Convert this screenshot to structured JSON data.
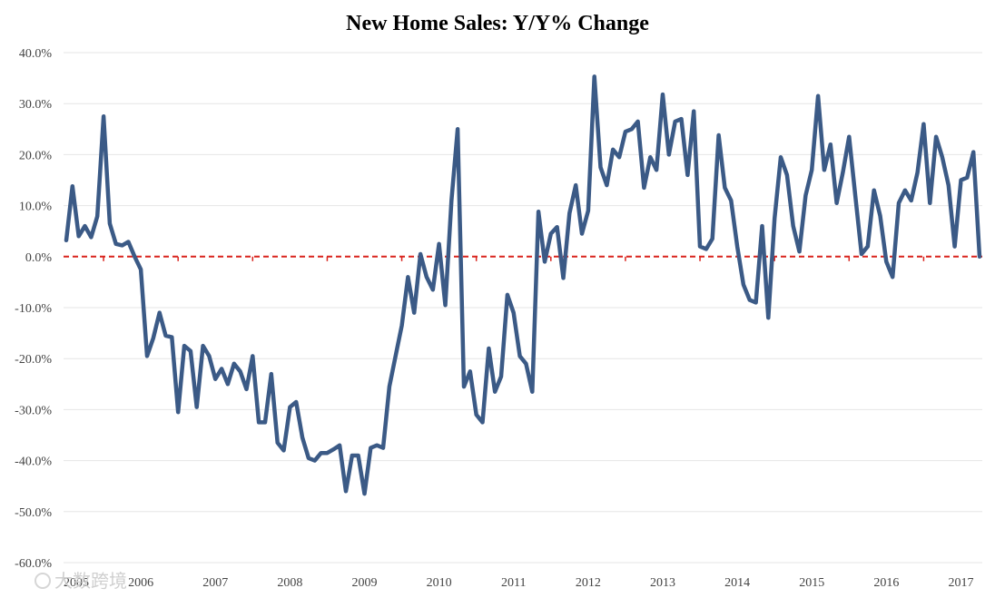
{
  "chart_data": {
    "type": "line",
    "title": "New Home Sales: Y/Y% Change",
    "xlabel": "",
    "ylabel": "",
    "ylim": [
      -60,
      40
    ],
    "y_ticks": [
      40,
      30,
      20,
      10,
      0,
      -10,
      -20,
      -30,
      -40,
      -50,
      -60
    ],
    "y_tick_labels": [
      "40.0%",
      "30.0%",
      "20.0%",
      "10.0%",
      "0.0%",
      "-10.0%",
      "-20.0%",
      "-30.0%",
      "-40.0%",
      "-50.0%",
      "-60.0%"
    ],
    "x_start_year": 2005,
    "x_start_month": 7,
    "x_tick_labels": [
      "2005",
      "2006",
      "2007",
      "2008",
      "2009",
      "2010",
      "2011",
      "2012",
      "2013",
      "2014",
      "2015",
      "2016",
      "2017"
    ],
    "x_tick_years": [
      2005,
      2006,
      2007,
      2008,
      2009,
      2010,
      2011,
      2012,
      2013,
      2014,
      2015,
      2016,
      2017
    ],
    "grid": true,
    "zero_line": {
      "value": 0,
      "style": "dashed",
      "color": "#d9231d"
    },
    "series": [
      {
        "name": "New Home Sales Y/Y% Change",
        "color": "#3b5a86",
        "values": [
          3.2,
          13.8,
          4.0,
          6.0,
          3.8,
          7.9,
          27.5,
          6.5,
          2.5,
          2.2,
          2.9,
          0.0,
          -2.5,
          -19.5,
          -16.0,
          -11.0,
          -15.5,
          -15.8,
          -30.5,
          -17.5,
          -18.5,
          -29.5,
          -17.5,
          -19.5,
          -24.0,
          -22.0,
          -25.0,
          -21.0,
          -22.5,
          -26.0,
          -19.5,
          -32.5,
          -32.5,
          -23.0,
          -36.5,
          -38.0,
          -29.5,
          -28.5,
          -35.5,
          -39.5,
          -40.0,
          -38.5,
          -38.5,
          -37.8,
          -37.0,
          -46.0,
          -39.0,
          -39.0,
          -46.5,
          -37.5,
          -37.0,
          -37.5,
          -25.5,
          -19.5,
          -13.5,
          -4.0,
          -11.0,
          0.5,
          -4.0,
          -6.5,
          2.5,
          -9.5,
          11.0,
          25.0,
          -25.5,
          -22.5,
          -31.0,
          -32.5,
          -18.0,
          -26.5,
          -23.5,
          -7.5,
          -11.0,
          -19.5,
          -21.0,
          -26.5,
          8.8,
          -1.0,
          4.5,
          5.8,
          -4.2,
          8.5,
          14.0,
          4.5,
          9.0,
          35.3,
          17.5,
          14.0,
          21.0,
          19.5,
          24.5,
          25.0,
          26.5,
          13.5,
          19.5,
          17.0,
          31.8,
          20.0,
          26.5,
          27.0,
          16.0,
          28.5,
          2.0,
          1.5,
          3.5,
          23.8,
          13.5,
          11.0,
          2.0,
          -5.5,
          -8.5,
          -9.0,
          6.0,
          -12.0,
          7.5,
          19.5,
          16.0,
          6.0,
          1.0,
          12.0,
          17.0,
          31.5,
          17.0,
          22.0,
          10.5,
          16.5,
          23.5,
          12.0,
          0.5,
          2.0,
          13.0,
          8.0,
          -1.0,
          -4.0,
          10.5,
          13.0,
          11.0,
          16.5,
          26.0,
          10.5,
          23.5,
          19.5,
          14.0,
          2.0,
          15.0,
          15.5,
          20.5,
          0.0
        ]
      }
    ]
  },
  "watermark": "大数跨境"
}
